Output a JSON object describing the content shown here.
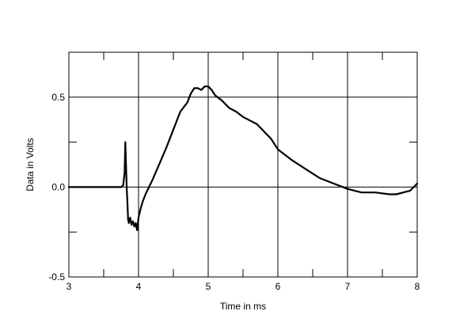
{
  "chart_data": {
    "type": "line",
    "title": "",
    "xlabel": "Time in ms",
    "ylabel": "Data in Volts",
    "xlim": [
      3,
      8
    ],
    "ylim": [
      -0.5,
      0.75
    ],
    "x_ticks": [
      3,
      4,
      5,
      6,
      7,
      8
    ],
    "x_tick_labels": [
      "3",
      "4",
      "5",
      "6",
      "7",
      "8"
    ],
    "y_ticks": [
      -0.5,
      0.0,
      0.5
    ],
    "y_tick_labels": [
      "-0.5",
      "0.0",
      "0.5"
    ],
    "grid": true,
    "legend": "none",
    "colors": {
      "line": "#000000",
      "grid": "#000000",
      "background": "#ffffff"
    },
    "series": [
      {
        "x": [
          3.0,
          3.5,
          3.75,
          3.78,
          3.8,
          3.81,
          3.82,
          3.83,
          3.84,
          3.85,
          3.86,
          3.88,
          3.9,
          3.92,
          3.94,
          3.96,
          3.98,
          4.0,
          4.03,
          4.06,
          4.1,
          4.15,
          4.2,
          4.3,
          4.4,
          4.5,
          4.6,
          4.7,
          4.75,
          4.8,
          4.85,
          4.9,
          4.95,
          5.0,
          5.05,
          5.1,
          5.2,
          5.3,
          5.4,
          5.5,
          5.6,
          5.7,
          5.8,
          5.9,
          6.0,
          6.2,
          6.4,
          6.6,
          6.8,
          7.0,
          7.2,
          7.4,
          7.6,
          7.7,
          7.8,
          7.9,
          8.0
        ],
        "values": [
          0.0,
          0.0,
          0.0,
          0.01,
          0.08,
          0.25,
          0.12,
          0.0,
          -0.08,
          -0.18,
          -0.2,
          -0.17,
          -0.21,
          -0.19,
          -0.22,
          -0.2,
          -0.24,
          -0.17,
          -0.12,
          -0.08,
          -0.04,
          0.0,
          0.04,
          0.13,
          0.22,
          0.32,
          0.42,
          0.47,
          0.52,
          0.55,
          0.55,
          0.54,
          0.56,
          0.56,
          0.54,
          0.51,
          0.48,
          0.44,
          0.42,
          0.39,
          0.37,
          0.35,
          0.31,
          0.27,
          0.21,
          0.15,
          0.1,
          0.05,
          0.02,
          -0.01,
          -0.03,
          -0.03,
          -0.04,
          -0.04,
          -0.03,
          -0.02,
          0.02
        ]
      }
    ]
  }
}
